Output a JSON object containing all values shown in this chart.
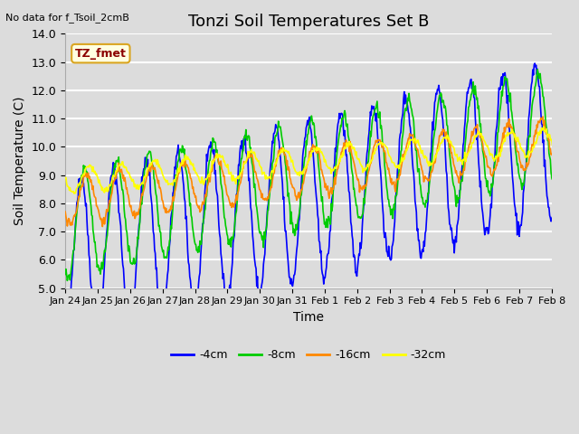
{
  "title": "Tonzi Soil Temperatures Set B",
  "no_data_label": "No data for f_Tsoil_2cmB",
  "tz_fmet_label": "TZ_fmet",
  "xlabel": "Time",
  "ylabel": "Soil Temperature (C)",
  "ylim": [
    5.0,
    14.0
  ],
  "yticks": [
    5.0,
    6.0,
    7.0,
    8.0,
    9.0,
    10.0,
    11.0,
    12.0,
    13.0,
    14.0
  ],
  "xtick_labels": [
    "Jan 24",
    "Jan 25",
    "Jan 26",
    "Jan 27",
    "Jan 28",
    "Jan 29",
    "Jan 30",
    "Jan 31",
    "Feb 1",
    "Feb 2",
    "Feb 3",
    "Feb 4",
    "Feb 5",
    "Feb 6",
    "Feb 7",
    "Feb 8"
  ],
  "colors": {
    "4cm": "#0000ff",
    "8cm": "#00cc00",
    "16cm": "#ff8800",
    "32cm": "#ffff00"
  },
  "background_color": "#dcdcdc",
  "plot_bg_color": "#dcdcdc",
  "grid_color": "#ffffff",
  "legend_entries": [
    "-4cm",
    "-8cm",
    "-16cm",
    "-32cm"
  ],
  "title_fontsize": 13,
  "axis_label_fontsize": 10,
  "tick_fontsize": 9
}
